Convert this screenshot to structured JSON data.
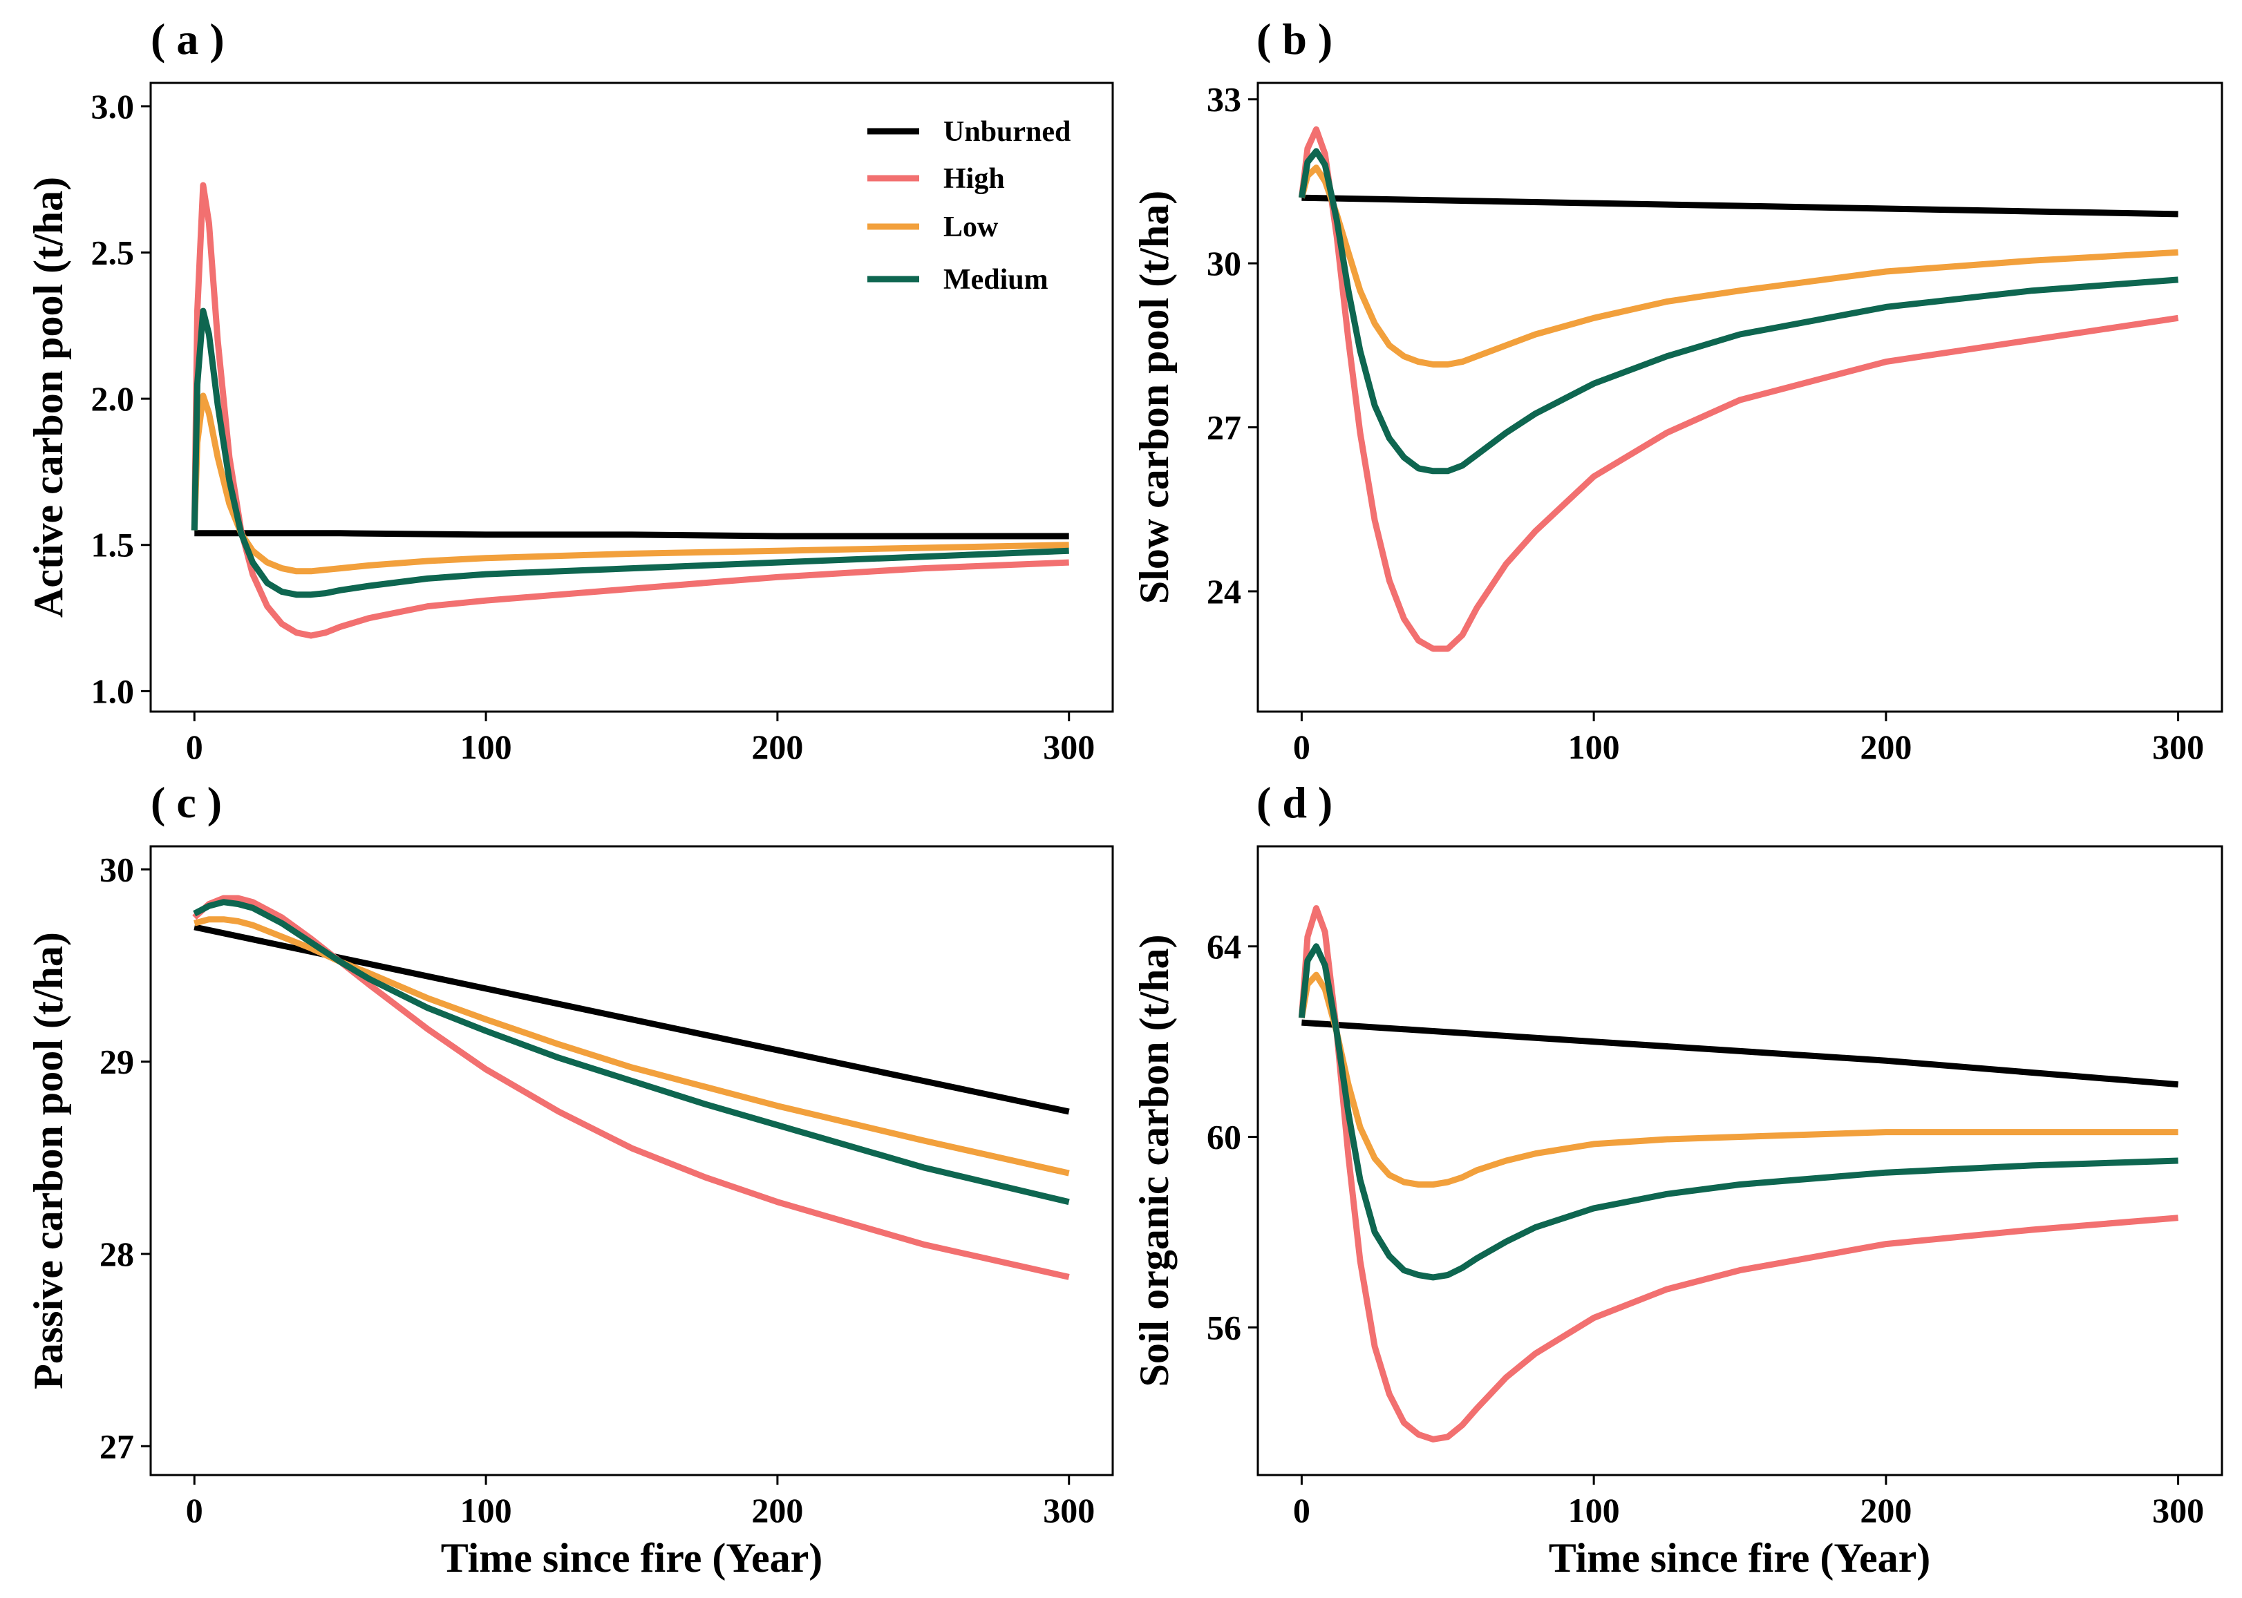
{
  "figure": {
    "xlabel": "Time since fire (Year)"
  },
  "legend": [
    {
      "name": "Unburned",
      "color": "#000000"
    },
    {
      "name": "High",
      "color": "#F27070"
    },
    {
      "name": "Low",
      "color": "#F2A03C"
    },
    {
      "name": "Medium",
      "color": "#0E6650"
    }
  ],
  "chart_data": [
    {
      "type": "line",
      "panel": "( a )",
      "title": "",
      "xlabel": "",
      "ylabel": "Active carbon pool (t/ha)",
      "xlim": [
        -15,
        315
      ],
      "ylim": [
        0.93,
        3.08
      ],
      "xticks": [
        0,
        100,
        200,
        300
      ],
      "xtick_labels": [
        "0",
        "100",
        "200",
        "300"
      ],
      "yticks": [
        1.0,
        1.5,
        2.0,
        2.5,
        3.0
      ],
      "ytick_labels": [
        "1.0",
        "1.5",
        "2.0",
        "2.5",
        "3.0"
      ],
      "legend_position": "top-right",
      "series": [
        {
          "name": "Unburned",
          "x": [
            0,
            50,
            100,
            150,
            200,
            250,
            300
          ],
          "y": [
            1.54,
            1.54,
            1.535,
            1.535,
            1.53,
            1.53,
            1.53
          ]
        },
        {
          "name": "High",
          "x": [
            0,
            1,
            3,
            5,
            8,
            12,
            16,
            20,
            25,
            30,
            35,
            40,
            45,
            50,
            60,
            80,
            100,
            150,
            200,
            250,
            300
          ],
          "y": [
            1.55,
            2.3,
            2.73,
            2.6,
            2.2,
            1.8,
            1.55,
            1.4,
            1.29,
            1.23,
            1.2,
            1.19,
            1.2,
            1.22,
            1.25,
            1.29,
            1.31,
            1.35,
            1.39,
            1.42,
            1.44
          ]
        },
        {
          "name": "Low",
          "x": [
            0,
            1,
            3,
            5,
            8,
            12,
            16,
            20,
            25,
            30,
            35,
            40,
            45,
            50,
            60,
            80,
            100,
            150,
            200,
            250,
            300
          ],
          "y": [
            1.55,
            1.85,
            2.01,
            1.95,
            1.8,
            1.64,
            1.54,
            1.48,
            1.44,
            1.42,
            1.41,
            1.41,
            1.415,
            1.42,
            1.43,
            1.445,
            1.455,
            1.47,
            1.48,
            1.49,
            1.5
          ]
        },
        {
          "name": "Medium",
          "x": [
            0,
            1,
            3,
            5,
            8,
            12,
            16,
            20,
            25,
            30,
            35,
            40,
            45,
            50,
            60,
            80,
            100,
            150,
            200,
            250,
            300
          ],
          "y": [
            1.55,
            2.05,
            2.3,
            2.22,
            1.98,
            1.72,
            1.54,
            1.44,
            1.37,
            1.34,
            1.33,
            1.33,
            1.335,
            1.345,
            1.36,
            1.385,
            1.4,
            1.42,
            1.44,
            1.46,
            1.48
          ]
        }
      ]
    },
    {
      "type": "line",
      "panel": "( b )",
      "title": "",
      "xlabel": "",
      "ylabel": "Slow carbon pool (t/ha)",
      "xlim": [
        -15,
        315
      ],
      "ylim": [
        21.8,
        33.3
      ],
      "xticks": [
        0,
        100,
        200,
        300
      ],
      "xtick_labels": [
        "0",
        "100",
        "200",
        "300"
      ],
      "yticks": [
        24,
        27,
        30,
        33
      ],
      "ytick_labels": [
        "24",
        "27",
        "30",
        "33"
      ],
      "series": [
        {
          "name": "Unburned",
          "x": [
            0,
            50,
            100,
            150,
            200,
            250,
            300
          ],
          "y": [
            31.2,
            31.15,
            31.1,
            31.05,
            31.0,
            30.95,
            30.9
          ]
        },
        {
          "name": "High",
          "x": [
            0,
            2,
            5,
            8,
            12,
            16,
            20,
            25,
            30,
            35,
            40,
            45,
            50,
            55,
            60,
            70,
            80,
            100,
            125,
            150,
            200,
            250,
            300
          ],
          "y": [
            31.2,
            32.1,
            32.45,
            32.0,
            30.5,
            28.6,
            26.9,
            25.3,
            24.2,
            23.5,
            23.1,
            22.95,
            22.95,
            23.2,
            23.7,
            24.5,
            25.1,
            26.1,
            26.9,
            27.5,
            28.2,
            28.6,
            29.0
          ]
        },
        {
          "name": "Low",
          "x": [
            0,
            2,
            5,
            8,
            12,
            16,
            20,
            25,
            30,
            35,
            40,
            45,
            50,
            55,
            60,
            70,
            80,
            100,
            125,
            150,
            200,
            250,
            300
          ],
          "y": [
            31.2,
            31.6,
            31.75,
            31.5,
            30.9,
            30.2,
            29.5,
            28.9,
            28.5,
            28.3,
            28.2,
            28.15,
            28.15,
            28.2,
            28.3,
            28.5,
            28.7,
            29.0,
            29.3,
            29.5,
            29.85,
            30.05,
            30.2
          ]
        },
        {
          "name": "Medium",
          "x": [
            0,
            2,
            5,
            8,
            12,
            16,
            20,
            25,
            30,
            35,
            40,
            45,
            50,
            55,
            60,
            70,
            80,
            100,
            125,
            150,
            200,
            250,
            300
          ],
          "y": [
            31.2,
            31.85,
            32.05,
            31.8,
            30.8,
            29.5,
            28.4,
            27.4,
            26.8,
            26.45,
            26.25,
            26.2,
            26.2,
            26.3,
            26.5,
            26.9,
            27.25,
            27.8,
            28.3,
            28.7,
            29.2,
            29.5,
            29.7
          ]
        }
      ]
    },
    {
      "type": "line",
      "panel": "( c )",
      "title": "",
      "xlabel": "Time since fire (Year)",
      "ylabel": "Passive carbon pool (t/ha)",
      "xlim": [
        -15,
        315
      ],
      "ylim": [
        26.85,
        30.12
      ],
      "xticks": [
        0,
        100,
        200,
        300
      ],
      "xtick_labels": [
        "0",
        "100",
        "200",
        "300"
      ],
      "yticks": [
        27,
        28,
        29,
        30
      ],
      "ytick_labels": [
        "27",
        "28",
        "29",
        "30"
      ],
      "series": [
        {
          "name": "Unburned",
          "x": [
            0,
            50,
            100,
            150,
            200,
            250,
            300
          ],
          "y": [
            29.7,
            29.54,
            29.38,
            29.22,
            29.06,
            28.9,
            28.74
          ]
        },
        {
          "name": "High",
          "x": [
            0,
            5,
            10,
            15,
            20,
            30,
            40,
            50,
            60,
            80,
            100,
            125,
            150,
            175,
            200,
            250,
            300
          ],
          "y": [
            29.75,
            29.82,
            29.85,
            29.85,
            29.83,
            29.75,
            29.64,
            29.52,
            29.4,
            29.17,
            28.96,
            28.74,
            28.55,
            28.4,
            28.27,
            28.05,
            27.88
          ]
        },
        {
          "name": "Low",
          "x": [
            0,
            5,
            10,
            15,
            20,
            30,
            40,
            50,
            60,
            80,
            100,
            125,
            150,
            175,
            200,
            250,
            300
          ],
          "y": [
            29.72,
            29.74,
            29.74,
            29.73,
            29.71,
            29.65,
            29.59,
            29.52,
            29.46,
            29.33,
            29.22,
            29.09,
            28.97,
            28.87,
            28.77,
            28.59,
            28.42
          ]
        },
        {
          "name": "Medium",
          "x": [
            0,
            5,
            10,
            15,
            20,
            30,
            40,
            50,
            60,
            80,
            100,
            125,
            150,
            175,
            200,
            250,
            300
          ],
          "y": [
            29.77,
            29.81,
            29.83,
            29.82,
            29.8,
            29.72,
            29.62,
            29.52,
            29.43,
            29.28,
            29.16,
            29.02,
            28.9,
            28.78,
            28.67,
            28.45,
            28.27
          ]
        }
      ]
    },
    {
      "type": "line",
      "panel": "( d )",
      "title": "",
      "xlabel": "Time since fire (Year)",
      "ylabel": "Soil organic carbon (t/ha)",
      "xlim": [
        -15,
        315
      ],
      "ylim": [
        52.9,
        66.1
      ],
      "xticks": [
        0,
        100,
        200,
        300
      ],
      "xtick_labels": [
        "0",
        "100",
        "200",
        "300"
      ],
      "yticks": [
        56,
        60,
        64
      ],
      "ytick_labels": [
        "56",
        "60",
        "64"
      ],
      "series": [
        {
          "name": "Unburned",
          "x": [
            0,
            50,
            100,
            150,
            200,
            250,
            300
          ],
          "y": [
            62.4,
            62.2,
            62.0,
            61.8,
            61.6,
            61.35,
            61.1
          ]
        },
        {
          "name": "High",
          "x": [
            0,
            2,
            5,
            8,
            12,
            16,
            20,
            25,
            30,
            35,
            40,
            45,
            50,
            55,
            60,
            70,
            80,
            100,
            125,
            150,
            200,
            250,
            300
          ],
          "y": [
            62.5,
            64.2,
            64.8,
            64.3,
            62.2,
            59.6,
            57.4,
            55.6,
            54.6,
            54.0,
            53.75,
            53.65,
            53.7,
            53.95,
            54.3,
            54.95,
            55.45,
            56.2,
            56.8,
            57.2,
            57.75,
            58.05,
            58.3
          ]
        },
        {
          "name": "Low",
          "x": [
            0,
            2,
            5,
            8,
            12,
            16,
            20,
            25,
            30,
            35,
            40,
            45,
            50,
            55,
            60,
            70,
            80,
            100,
            125,
            150,
            200,
            250,
            300
          ],
          "y": [
            62.5,
            63.2,
            63.4,
            63.1,
            62.2,
            61.1,
            60.2,
            59.55,
            59.2,
            59.05,
            59.0,
            59.0,
            59.05,
            59.15,
            59.3,
            59.5,
            59.65,
            59.85,
            59.95,
            60.0,
            60.1,
            60.1,
            60.1
          ]
        },
        {
          "name": "Medium",
          "x": [
            0,
            2,
            5,
            8,
            12,
            16,
            20,
            25,
            30,
            35,
            40,
            45,
            50,
            55,
            60,
            70,
            80,
            100,
            125,
            150,
            200,
            250,
            300
          ],
          "y": [
            62.5,
            63.7,
            64.0,
            63.6,
            62.2,
            60.5,
            59.1,
            58.0,
            57.5,
            57.2,
            57.1,
            57.05,
            57.1,
            57.25,
            57.45,
            57.8,
            58.1,
            58.5,
            58.8,
            59.0,
            59.25,
            59.4,
            59.5
          ]
        }
      ]
    }
  ]
}
